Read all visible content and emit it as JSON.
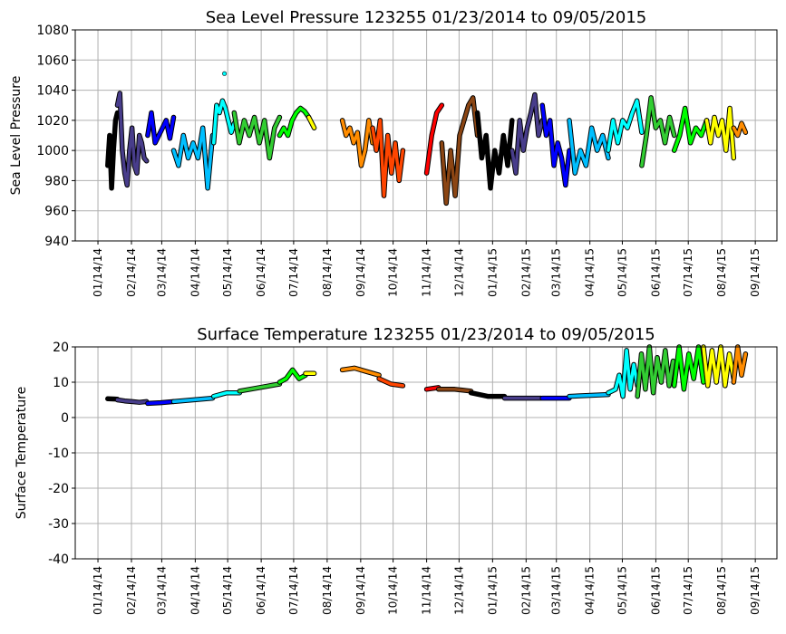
{
  "chart_data": [
    {
      "type": "line",
      "title": "Sea Level Pressure 123255  01/23/2014 to 09/05/2015",
      "xlabel": "",
      "ylabel": "Sea Level Pressure",
      "ylim": [
        940,
        1080
      ],
      "yticks": [
        940,
        960,
        980,
        1000,
        1020,
        1040,
        1060,
        1080
      ],
      "xlim": [
        "2013-12-24",
        "2015-10-04"
      ],
      "xticks": [
        {
          "date": "2014-01-14",
          "label": "01/14/14"
        },
        {
          "date": "2014-02-14",
          "label": "02/14/14"
        },
        {
          "date": "2014-03-14",
          "label": "03/14/14"
        },
        {
          "date": "2014-04-14",
          "label": "04/14/14"
        },
        {
          "date": "2014-05-14",
          "label": "05/14/14"
        },
        {
          "date": "2014-06-14",
          "label": "06/14/14"
        },
        {
          "date": "2014-07-14",
          "label": "07/14/14"
        },
        {
          "date": "2014-08-14",
          "label": "08/14/14"
        },
        {
          "date": "2014-09-14",
          "label": "09/14/14"
        },
        {
          "date": "2014-10-14",
          "label": "10/14/14"
        },
        {
          "date": "2014-11-14",
          "label": "11/14/14"
        },
        {
          "date": "2014-12-14",
          "label": "12/14/14"
        },
        {
          "date": "2015-01-14",
          "label": "01/14/15"
        },
        {
          "date": "2015-02-14",
          "label": "02/14/15"
        },
        {
          "date": "2015-03-14",
          "label": "03/14/15"
        },
        {
          "date": "2015-04-14",
          "label": "04/14/15"
        },
        {
          "date": "2015-05-14",
          "label": "05/14/15"
        },
        {
          "date": "2015-06-14",
          "label": "06/14/15"
        },
        {
          "date": "2015-07-14",
          "label": "07/14/15"
        },
        {
          "date": "2015-08-14",
          "label": "08/14/15"
        },
        {
          "date": "2015-09-14",
          "label": "09/14/15"
        }
      ],
      "grid": true,
      "series": [
        {
          "color": "#000000",
          "start": "2014-01-23",
          "end": "2014-02-01",
          "values": [
            990,
            1010,
            975,
            1000,
            1020,
            1025
          ]
        },
        {
          "color": "#483d8b",
          "start": "2014-02-01",
          "end": "2014-02-28",
          "values": [
            1030,
            1038,
            1000,
            985,
            977,
            1000,
            1015,
            990,
            985,
            1010,
            1005,
            995,
            993
          ]
        },
        {
          "color": "#0000ff",
          "start": "2014-03-01",
          "end": "2014-03-25",
          "values": [
            1010,
            1025,
            1005,
            1010,
            1015,
            1020,
            1008,
            1022
          ]
        },
        {
          "color": "#00bfff",
          "start": "2014-03-25",
          "end": "2014-04-30",
          "values": [
            1000,
            990,
            1010,
            995,
            1005,
            995,
            1015,
            975,
            1010
          ]
        },
        {
          "color": "#00ffff",
          "start": "2014-05-01",
          "end": "2014-05-20",
          "values": [
            1005,
            1030,
            1025,
            1033,
            1028,
            1020,
            1012,
            1018
          ]
        },
        {
          "color": "#00ffff",
          "start": "2014-05-11",
          "end": "2014-05-11",
          "values": [
            1051
          ]
        },
        {
          "color": "#32cd32",
          "start": "2014-05-20",
          "end": "2014-07-01",
          "values": [
            1025,
            1005,
            1020,
            1010,
            1022,
            1005,
            1020,
            995,
            1015,
            1022
          ]
        },
        {
          "color": "#00ff00",
          "start": "2014-07-01",
          "end": "2014-07-28",
          "values": [
            1010,
            1015,
            1010,
            1020,
            1025,
            1028,
            1026,
            1022
          ]
        },
        {
          "color": "#ffff00",
          "start": "2014-07-28",
          "end": "2014-08-02",
          "values": [
            1022,
            1015
          ]
        },
        {
          "color": "#ff8c00",
          "start": "2014-08-28",
          "end": "2014-09-25",
          "values": [
            1020,
            1010,
            1015,
            1005,
            1012,
            990,
            1000,
            1020,
            1005
          ]
        },
        {
          "color": "#ff4500",
          "start": "2014-09-25",
          "end": "2014-10-23",
          "values": [
            1015,
            1000,
            1020,
            970,
            1010,
            985,
            1005,
            980,
            1000
          ]
        },
        {
          "color": "#ff0000",
          "start": "2014-11-14",
          "end": "2014-11-28",
          "values": [
            985,
            1010,
            1025,
            1030
          ]
        },
        {
          "color": "#8b4513",
          "start": "2014-11-28",
          "end": "2014-12-31",
          "values": [
            1005,
            965,
            1000,
            970,
            1010,
            1020,
            1030,
            1035,
            1010
          ]
        },
        {
          "color": "#000000",
          "start": "2014-12-31",
          "end": "2015-02-01",
          "values": [
            1025,
            995,
            1010,
            975,
            1000,
            985,
            1010,
            990,
            1020
          ]
        },
        {
          "color": "#483d8b",
          "start": "2015-02-01",
          "end": "2015-03-01",
          "values": [
            1000,
            985,
            1020,
            1000,
            1015,
            1025,
            1037,
            1010,
            1020
          ]
        },
        {
          "color": "#0000ff",
          "start": "2015-03-01",
          "end": "2015-03-26",
          "values": [
            1030,
            1010,
            1020,
            990,
            1005,
            995,
            977,
            1000
          ]
        },
        {
          "color": "#00bfff",
          "start": "2015-03-26",
          "end": "2015-05-01",
          "values": [
            1020,
            985,
            1000,
            990,
            1015,
            1000,
            1010,
            995
          ]
        },
        {
          "color": "#00ffff",
          "start": "2015-05-01",
          "end": "2015-06-01",
          "values": [
            1000,
            1020,
            1005,
            1020,
            1015,
            1025,
            1033,
            1012
          ]
        },
        {
          "color": "#32cd32",
          "start": "2015-06-01",
          "end": "2015-07-01",
          "values": [
            990,
            1010,
            1035,
            1015,
            1020,
            1005,
            1022,
            1010
          ]
        },
        {
          "color": "#00ff00",
          "start": "2015-07-01",
          "end": "2015-07-31",
          "values": [
            1000,
            1010,
            1028,
            1005,
            1015,
            1010,
            1020
          ]
        },
        {
          "color": "#ffff00",
          "start": "2015-07-31",
          "end": "2015-08-25",
          "values": [
            1020,
            1005,
            1022,
            1010,
            1020,
            1000,
            1028,
            995
          ]
        },
        {
          "color": "#ff8c00",
          "start": "2015-08-25",
          "end": "2015-09-05",
          "values": [
            1015,
            1010,
            1018,
            1012
          ]
        }
      ]
    },
    {
      "type": "line",
      "title": "Surface Temperature 123255  01/23/2014 to 09/05/2015",
      "xlabel": "",
      "ylabel": "Surface Temperature",
      "ylim": [
        -40,
        20
      ],
      "yticks": [
        -40,
        -30,
        -20,
        -10,
        0,
        10,
        20
      ],
      "xlim": [
        "2013-12-24",
        "2015-10-04"
      ],
      "xticks": [
        {
          "date": "2014-01-14",
          "label": "01/14/14"
        },
        {
          "date": "2014-02-14",
          "label": "02/14/14"
        },
        {
          "date": "2014-03-14",
          "label": "03/14/14"
        },
        {
          "date": "2014-04-14",
          "label": "04/14/14"
        },
        {
          "date": "2014-05-14",
          "label": "05/14/14"
        },
        {
          "date": "2014-06-14",
          "label": "06/14/14"
        },
        {
          "date": "2014-07-14",
          "label": "07/14/14"
        },
        {
          "date": "2014-08-14",
          "label": "08/14/14"
        },
        {
          "date": "2014-09-14",
          "label": "09/14/14"
        },
        {
          "date": "2014-10-14",
          "label": "10/14/14"
        },
        {
          "date": "2014-11-14",
          "label": "11/14/14"
        },
        {
          "date": "2014-12-14",
          "label": "12/14/14"
        },
        {
          "date": "2015-01-14",
          "label": "01/14/15"
        },
        {
          "date": "2015-02-14",
          "label": "02/14/15"
        },
        {
          "date": "2015-03-14",
          "label": "03/14/15"
        },
        {
          "date": "2015-04-14",
          "label": "04/14/15"
        },
        {
          "date": "2015-05-14",
          "label": "05/14/15"
        },
        {
          "date": "2015-06-14",
          "label": "06/14/15"
        },
        {
          "date": "2015-07-14",
          "label": "07/14/15"
        },
        {
          "date": "2015-08-14",
          "label": "08/14/15"
        },
        {
          "date": "2015-09-14",
          "label": "09/14/15"
        }
      ],
      "grid": true,
      "series": [
        {
          "color": "#000000",
          "start": "2014-01-23",
          "end": "2014-02-01",
          "values": [
            5.3,
            5.2
          ]
        },
        {
          "color": "#483d8b",
          "start": "2014-02-01",
          "end": "2014-02-28",
          "values": [
            5,
            4.7,
            4.5,
            4.3,
            4.5
          ]
        },
        {
          "color": "#0000ff",
          "start": "2014-03-01",
          "end": "2014-03-25",
          "values": [
            4,
            4.2,
            4.5
          ]
        },
        {
          "color": "#00bfff",
          "start": "2014-03-25",
          "end": "2014-04-30",
          "values": [
            4.5,
            5,
            5.5
          ]
        },
        {
          "color": "#00ffff",
          "start": "2014-05-01",
          "end": "2014-05-25",
          "values": [
            6,
            7,
            7
          ]
        },
        {
          "color": "#32cd32",
          "start": "2014-05-25",
          "end": "2014-07-01",
          "values": [
            7.5,
            8.5,
            9.5
          ]
        },
        {
          "color": "#00ff00",
          "start": "2014-07-01",
          "end": "2014-07-25",
          "values": [
            10,
            11,
            13.5,
            11,
            12
          ]
        },
        {
          "color": "#ffff00",
          "start": "2014-07-25",
          "end": "2014-08-02",
          "values": [
            12.5,
            12.5
          ]
        },
        {
          "color": "#ff8c00",
          "start": "2014-08-28",
          "end": "2014-10-01",
          "values": [
            13.5,
            14,
            13,
            12
          ]
        },
        {
          "color": "#ff4500",
          "start": "2014-10-01",
          "end": "2014-10-23",
          "values": [
            11,
            9.5,
            9
          ]
        },
        {
          "color": "#ff0000",
          "start": "2014-11-14",
          "end": "2014-11-25",
          "values": [
            8,
            8.5
          ]
        },
        {
          "color": "#8b4513",
          "start": "2014-11-25",
          "end": "2014-12-25",
          "values": [
            8,
            8,
            7.5
          ]
        },
        {
          "color": "#000000",
          "start": "2014-12-25",
          "end": "2015-01-25",
          "values": [
            7,
            6,
            6
          ]
        },
        {
          "color": "#483d8b",
          "start": "2015-01-25",
          "end": "2015-02-28",
          "values": [
            5.5,
            5.5
          ]
        },
        {
          "color": "#0000ff",
          "start": "2015-03-01",
          "end": "2015-03-26",
          "values": [
            5.5,
            5.5
          ]
        },
        {
          "color": "#00bfff",
          "start": "2015-03-26",
          "end": "2015-05-01",
          "values": [
            6,
            6.5
          ]
        },
        {
          "color": "#00ffff",
          "start": "2015-05-01",
          "end": "2015-05-28",
          "values": [
            7,
            7.5,
            8,
            12,
            6,
            19,
            8,
            15,
            9
          ]
        },
        {
          "color": "#32cd32",
          "start": "2015-05-28",
          "end": "2015-06-30",
          "values": [
            6,
            18,
            8,
            20,
            7,
            17,
            10,
            19,
            9,
            16
          ]
        },
        {
          "color": "#00ff00",
          "start": "2015-07-01",
          "end": "2015-07-28",
          "values": [
            9,
            20,
            8,
            18,
            11,
            20,
            10
          ]
        },
        {
          "color": "#ffff00",
          "start": "2015-07-28",
          "end": "2015-08-25",
          "values": [
            20,
            9,
            19,
            10,
            20,
            9,
            18,
            11
          ]
        },
        {
          "color": "#ff8c00",
          "start": "2015-08-25",
          "end": "2015-09-05",
          "values": [
            10,
            20,
            12,
            18
          ]
        }
      ]
    }
  ]
}
